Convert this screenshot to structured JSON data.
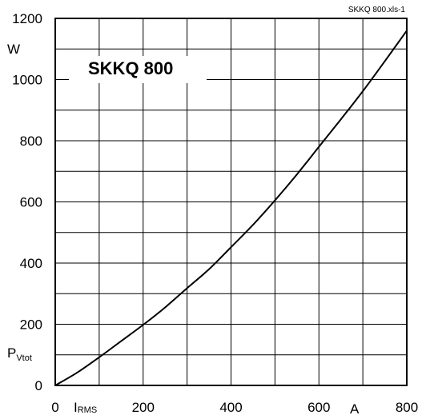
{
  "chart_data": {
    "type": "line",
    "title": "SKKQ 800",
    "file_label": "SKKQ 800.xls-1",
    "y_unit": "W",
    "y_label": {
      "main": "P",
      "sub": "Vtot"
    },
    "x_unit": "A",
    "x_label": {
      "main": "I",
      "sub": "RMS"
    },
    "xlim": [
      0,
      800
    ],
    "ylim": [
      0,
      1200
    ],
    "x_ticks": [
      0,
      200,
      400,
      600,
      800
    ],
    "x_tick_labels": [
      "0",
      "200",
      "400",
      "600",
      "800"
    ],
    "y_ticks": [
      0,
      200,
      400,
      600,
      800,
      1000,
      1200
    ],
    "y_tick_labels": [
      "0",
      "200",
      "400",
      "600",
      "800",
      "1000",
      "1200"
    ],
    "x_grid": [
      0,
      100,
      200,
      300,
      400,
      500,
      600,
      700,
      800
    ],
    "y_grid": [
      0,
      100,
      200,
      300,
      400,
      500,
      600,
      700,
      800,
      900,
      1000,
      1100,
      1200
    ],
    "grid": true,
    "series": [
      {
        "x": [
          0,
          50,
          100,
          150,
          200,
          250,
          300,
          350,
          400,
          450,
          500,
          550,
          600,
          650,
          700,
          750,
          800
        ],
        "y": [
          0,
          42,
          92,
          145,
          198,
          255,
          318,
          380,
          452,
          525,
          605,
          690,
          780,
          870,
          962,
          1060,
          1160
        ]
      }
    ]
  }
}
